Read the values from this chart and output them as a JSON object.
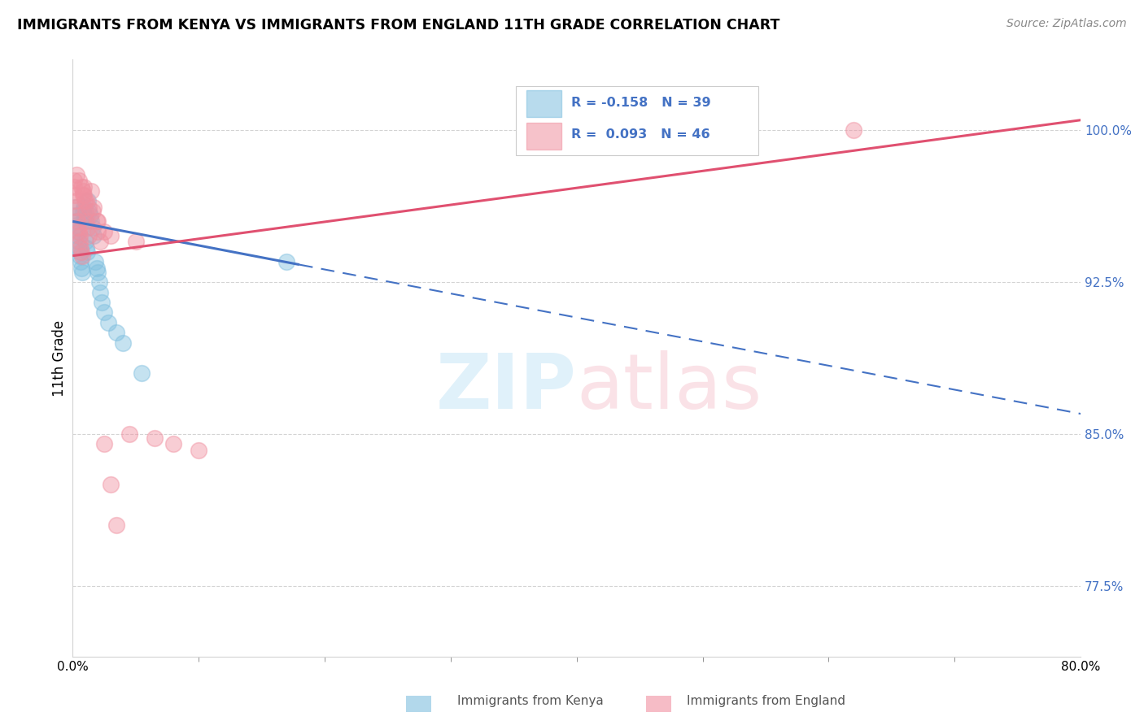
{
  "title": "IMMIGRANTS FROM KENYA VS IMMIGRANTS FROM ENGLAND 11TH GRADE CORRELATION CHART",
  "source": "Source: ZipAtlas.com",
  "ylabel": "11th Grade",
  "xlim": [
    0.0,
    80.0
  ],
  "ylim": [
    74.0,
    103.5
  ],
  "yticks": [
    77.5,
    85.0,
    92.5,
    100.0
  ],
  "ytick_labels": [
    "77.5%",
    "85.0%",
    "92.5%",
    "100.0%"
  ],
  "legend_r1": "R = -0.158",
  "legend_n1": "N = 39",
  "legend_r2": "R =  0.093",
  "legend_n2": "N = 46",
  "color_kenya": "#7fbfdf",
  "color_england": "#f090a0",
  "color_trend_kenya": "#4472c4",
  "color_trend_england": "#e05070",
  "watermark_zip": "ZIP",
  "watermark_atlas": "atlas",
  "kenya_trend_x0": 0.0,
  "kenya_trend_y0": 95.5,
  "kenya_trend_x1": 80.0,
  "kenya_trend_y1": 86.0,
  "kenya_solid_end_x": 18.0,
  "england_trend_x0": 0.0,
  "england_trend_y0": 93.8,
  "england_trend_x1": 80.0,
  "england_trend_y1": 100.5,
  "kenya_x": [
    0.15,
    0.2,
    0.25,
    0.3,
    0.35,
    0.4,
    0.45,
    0.5,
    0.55,
    0.6,
    0.65,
    0.7,
    0.75,
    0.8,
    0.85,
    0.9,
    0.95,
    1.0,
    1.05,
    1.1,
    1.15,
    1.2,
    1.3,
    1.4,
    1.5,
    1.6,
    1.7,
    1.8,
    1.9,
    2.0,
    2.1,
    2.2,
    2.3,
    2.5,
    2.8,
    3.5,
    4.0,
    5.5,
    17.0
  ],
  "kenya_y": [
    96.2,
    95.8,
    95.5,
    95.3,
    95.0,
    94.8,
    94.5,
    94.2,
    94.0,
    93.8,
    93.5,
    93.2,
    93.0,
    95.5,
    96.0,
    96.2,
    95.8,
    95.5,
    94.5,
    94.2,
    94.0,
    96.5,
    96.0,
    95.8,
    95.5,
    95.2,
    94.8,
    93.5,
    93.2,
    93.0,
    92.5,
    92.0,
    91.5,
    91.0,
    90.5,
    90.0,
    89.5,
    88.0,
    93.5
  ],
  "england_x": [
    0.1,
    0.15,
    0.2,
    0.25,
    0.3,
    0.35,
    0.4,
    0.45,
    0.5,
    0.55,
    0.6,
    0.65,
    0.7,
    0.75,
    0.8,
    0.85,
    0.9,
    0.95,
    1.0,
    1.1,
    1.2,
    1.3,
    1.5,
    1.7,
    1.9,
    2.0,
    2.2,
    2.5,
    3.0,
    3.5,
    4.5,
    6.5,
    8.0,
    10.0,
    62.0,
    0.3,
    0.5,
    0.7,
    0.9,
    1.1,
    1.3,
    1.6,
    2.0,
    2.5,
    3.0,
    5.0
  ],
  "england_y": [
    97.5,
    97.2,
    96.8,
    96.5,
    96.2,
    95.8,
    95.5,
    95.2,
    95.0,
    94.8,
    94.5,
    94.2,
    94.0,
    93.8,
    96.8,
    97.0,
    97.2,
    96.5,
    96.0,
    95.5,
    95.2,
    94.8,
    97.0,
    96.2,
    95.5,
    95.0,
    94.5,
    84.5,
    82.5,
    80.5,
    85.0,
    84.8,
    84.5,
    84.2,
    100.0,
    97.8,
    97.5,
    97.2,
    96.8,
    96.5,
    96.2,
    96.0,
    95.5,
    95.0,
    94.8,
    94.5
  ]
}
